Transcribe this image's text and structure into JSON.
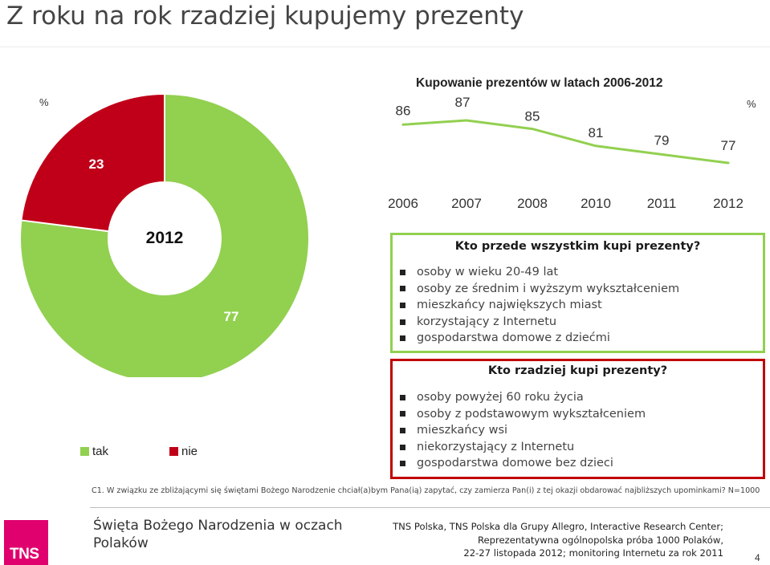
{
  "page": {
    "title": "Z roku na rok rzadziej kupujemy prezenty",
    "page_number": "4"
  },
  "chart_data": [
    {
      "type": "pie",
      "center_label": "2012",
      "unit_label": "%",
      "slices": [
        {
          "name": "tak",
          "value": 77,
          "color": "#92d050"
        },
        {
          "name": "nie",
          "value": 23,
          "color": "#c00018"
        }
      ],
      "legend": [
        "tak",
        "nie"
      ],
      "legend_position": "bottom"
    },
    {
      "type": "line",
      "title": "Kupowanie prezentów w latach 2006-2012",
      "unit_label": "%",
      "categories": [
        "2006",
        "2007",
        "2008",
        "2010",
        "2011",
        "2012"
      ],
      "values": [
        86,
        87,
        85,
        81,
        79,
        77
      ],
      "color": "#92d050",
      "grid": false
    }
  ],
  "green_box": {
    "heading": "Kto przede wszystkim kupi prezenty?",
    "items": [
      "osoby w wieku 20-49 lat",
      "osoby ze średnim i wyższym wykształceniem",
      "mieszkańcy największych miast",
      "korzystający z Internetu",
      "gospodarstwa domowe z dziećmi"
    ],
    "border_color": "#92d050"
  },
  "red_box": {
    "heading": "Kto rzadziej kupi prezenty?",
    "items": [
      "osoby powyżej 60 roku życia",
      "osoby z podstawowym wykształceniem",
      "mieszkańcy wsi",
      "niekorzystający z Internetu",
      "gospodarstwa domowe bez dzieci"
    ],
    "border_color": "#c00000"
  },
  "footnote": "C1. W związku ze zbliżającymi się świętami Bożego Narodzenie chciał(a)bym Pana(ią) zapytać, czy zamierza Pan(i) z tej okazji obdarować najbliższych upominkami? N=1000",
  "footer": {
    "left_text": "Święta Bożego Narodzenia w oczach Polaków",
    "logo_text": "TNS",
    "logo_color": "#e0006e",
    "right_lines": [
      "TNS Polska, TNS Polska dla Grupy Allegro, Interactive Research Center;",
      "Reprezentatywna ogólnopolska próba 1000 Polaków,",
      "22-27 listopada 2012; monitoring Internetu za rok 2011"
    ]
  }
}
